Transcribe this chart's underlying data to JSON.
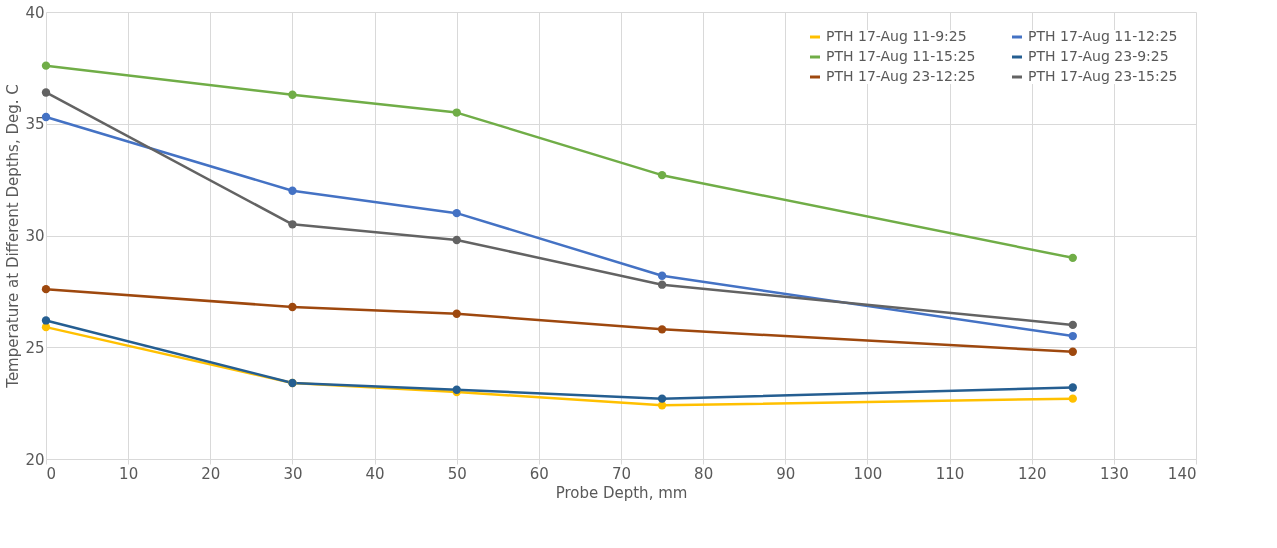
{
  "chart_data": {
    "type": "line",
    "xlabel": "Probe Depth, mm",
    "ylabel": "Temperature at Different Depths, Deg. C",
    "x": [
      0,
      30,
      50,
      75,
      125
    ],
    "series": [
      {
        "name": "PTH 17-Aug 11-9:25",
        "color": "#ffc000",
        "values": [
          25.9,
          23.4,
          23.0,
          22.4,
          22.7
        ]
      },
      {
        "name": "PTH 17-Aug 11-12:25",
        "color": "#4472c4",
        "values": [
          35.3,
          32.0,
          31.0,
          28.2,
          25.5
        ]
      },
      {
        "name": "PTH 17-Aug 11-15:25",
        "color": "#70ad47",
        "values": [
          37.6,
          36.3,
          35.5,
          32.7,
          29.0
        ]
      },
      {
        "name": "PTH 17-Aug 23-9:25",
        "color": "#255e91",
        "values": [
          26.2,
          23.4,
          23.1,
          22.7,
          23.2
        ]
      },
      {
        "name": "PTH 17-Aug 23-12:25",
        "color": "#9e480e",
        "values": [
          27.6,
          26.8,
          26.5,
          25.8,
          24.8
        ]
      },
      {
        "name": "PTH 17-Aug 23-15:25",
        "color": "#636363",
        "values": [
          36.4,
          30.5,
          29.8,
          27.8,
          26.0
        ]
      }
    ],
    "xlim": [
      0,
      140
    ],
    "xticks": [
      0,
      10,
      20,
      30,
      40,
      50,
      60,
      70,
      80,
      90,
      100,
      110,
      120,
      130,
      140
    ],
    "ylim": [
      20,
      40
    ],
    "yticks": [
      20,
      25,
      30,
      35,
      40
    ],
    "grid": true,
    "legend": "top right",
    "marker": "circle",
    "line_style": "solid"
  }
}
